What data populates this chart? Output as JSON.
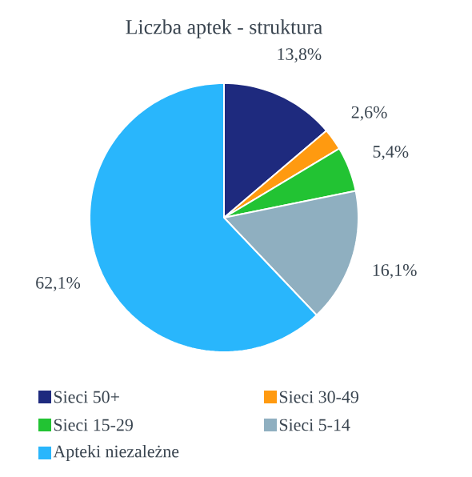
{
  "chart_data": {
    "type": "pie",
    "title": "Liczba aptek - struktura",
    "categories": [
      "Sieci 50+",
      "Sieci 30-49",
      "Sieci 15-29",
      "Sieci 5-14",
      "Apteki niezależne"
    ],
    "values": [
      13.8,
      2.6,
      5.4,
      16.1,
      62.1
    ],
    "colors": [
      "#1e2a7e",
      "#ff9a10",
      "#22c333",
      "#8fafc0",
      "#29b6fc"
    ],
    "value_labels": [
      "13,8%",
      "2,6%",
      "5,4%",
      "16,1%",
      "62,1%"
    ],
    "legend": "bottom"
  }
}
